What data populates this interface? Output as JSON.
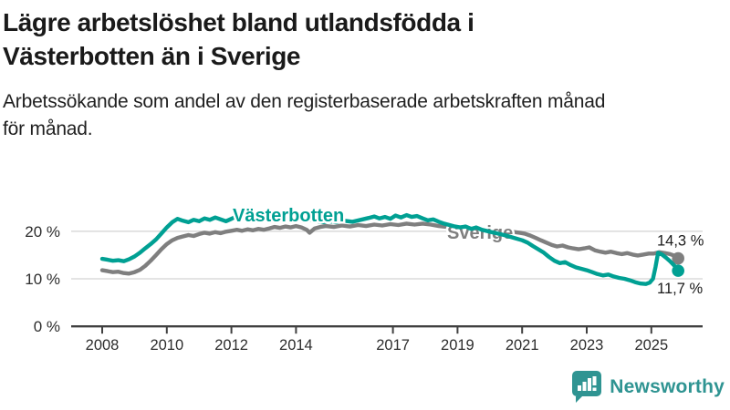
{
  "header": {
    "title_line1": "Lägre arbetslöshet bland utlandsfödda i",
    "title_line2": "Västerbotten än i Sverige",
    "subtitle_line1": "Arbetssökande som andel av den registerbaserade arbetskraften månad",
    "subtitle_line2": "för månad."
  },
  "footer": {
    "brand": "Newsworthy",
    "logo_icon": "bar-chart-speech-bubble-icon"
  },
  "colors": {
    "vasterbotten": "#00a093",
    "sverige": "#7f7f7f",
    "grid": "#dcdcdc",
    "axis": "#404040",
    "tick_label": "#2d2d2d",
    "value_label": "#1a1a1a",
    "brand": "#2f9492",
    "background": "#ffffff"
  },
  "chart_data": {
    "type": "line",
    "title": "Lägre arbetslöshet bland utlandsfödda i Västerbotten än i Sverige",
    "subtitle": "Arbetssökande som andel av den registerbaserade arbetskraften månad för månad.",
    "xlabel": "",
    "ylabel": "",
    "grid": true,
    "xlim": [
      2007.85,
      2026.5
    ],
    "ylim": [
      0,
      28
    ],
    "x_ticks": [
      2008,
      2010,
      2012,
      2014,
      2017,
      2019,
      2021,
      2023,
      2025
    ],
    "y_ticks": [
      "0 %",
      "10 %",
      "20 %"
    ],
    "y_tick_values": [
      0,
      10,
      20
    ],
    "legend_position": "inline-labels",
    "series": [
      {
        "name": "Sverige",
        "color": "#7f7f7f",
        "end_label": "14,3 %",
        "end_label_side": "above",
        "points": [
          [
            2008.0,
            11.8
          ],
          [
            2008.17,
            11.6
          ],
          [
            2008.33,
            11.4
          ],
          [
            2008.5,
            11.5
          ],
          [
            2008.67,
            11.2
          ],
          [
            2008.83,
            11.1
          ],
          [
            2009.0,
            11.4
          ],
          [
            2009.17,
            11.9
          ],
          [
            2009.33,
            12.7
          ],
          [
            2009.5,
            13.8
          ],
          [
            2009.67,
            15.0
          ],
          [
            2009.83,
            16.2
          ],
          [
            2010.0,
            17.3
          ],
          [
            2010.17,
            18.1
          ],
          [
            2010.33,
            18.6
          ],
          [
            2010.5,
            18.9
          ],
          [
            2010.67,
            19.2
          ],
          [
            2010.83,
            19.0
          ],
          [
            2011.0,
            19.4
          ],
          [
            2011.17,
            19.7
          ],
          [
            2011.33,
            19.5
          ],
          [
            2011.5,
            19.8
          ],
          [
            2011.67,
            19.6
          ],
          [
            2011.83,
            19.9
          ],
          [
            2012.0,
            20.1
          ],
          [
            2012.17,
            20.3
          ],
          [
            2012.33,
            20.1
          ],
          [
            2012.5,
            20.4
          ],
          [
            2012.67,
            20.2
          ],
          [
            2012.83,
            20.5
          ],
          [
            2013.0,
            20.3
          ],
          [
            2013.17,
            20.6
          ],
          [
            2013.33,
            20.9
          ],
          [
            2013.5,
            20.7
          ],
          [
            2013.67,
            21.0
          ],
          [
            2013.83,
            20.8
          ],
          [
            2014.0,
            21.1
          ],
          [
            2014.17,
            20.8
          ],
          [
            2014.33,
            20.3
          ],
          [
            2014.42,
            19.7
          ],
          [
            2014.58,
            20.6
          ],
          [
            2014.75,
            20.9
          ],
          [
            2014.92,
            21.1
          ],
          [
            2015.17,
            20.9
          ],
          [
            2015.42,
            21.2
          ],
          [
            2015.67,
            21.0
          ],
          [
            2015.92,
            21.3
          ],
          [
            2016.17,
            21.1
          ],
          [
            2016.42,
            21.4
          ],
          [
            2016.67,
            21.2
          ],
          [
            2016.92,
            21.5
          ],
          [
            2017.17,
            21.3
          ],
          [
            2017.42,
            21.6
          ],
          [
            2017.67,
            21.4
          ],
          [
            2017.92,
            21.6
          ],
          [
            2018.17,
            21.4
          ],
          [
            2018.42,
            21.1
          ],
          [
            2018.67,
            20.9
          ],
          [
            2018.92,
            20.7
          ],
          [
            2019.17,
            20.5
          ],
          [
            2019.42,
            20.3
          ],
          [
            2019.67,
            20.4
          ],
          [
            2019.92,
            20.2
          ],
          [
            2020.17,
            20.3
          ],
          [
            2020.42,
            20.1
          ],
          [
            2020.67,
            19.9
          ],
          [
            2020.92,
            19.7
          ],
          [
            2021.08,
            19.5
          ],
          [
            2021.25,
            19.1
          ],
          [
            2021.42,
            18.6
          ],
          [
            2021.58,
            18.1
          ],
          [
            2021.75,
            17.6
          ],
          [
            2021.92,
            17.1
          ],
          [
            2022.08,
            16.8
          ],
          [
            2022.25,
            17.0
          ],
          [
            2022.42,
            16.6
          ],
          [
            2022.58,
            16.4
          ],
          [
            2022.75,
            16.2
          ],
          [
            2022.92,
            16.4
          ],
          [
            2023.08,
            16.6
          ],
          [
            2023.25,
            16.0
          ],
          [
            2023.42,
            15.7
          ],
          [
            2023.58,
            15.5
          ],
          [
            2023.75,
            15.7
          ],
          [
            2023.92,
            15.4
          ],
          [
            2024.08,
            15.2
          ],
          [
            2024.25,
            15.4
          ],
          [
            2024.42,
            15.1
          ],
          [
            2024.58,
            14.9
          ],
          [
            2024.75,
            15.1
          ],
          [
            2024.92,
            15.3
          ],
          [
            2025.08,
            15.3
          ],
          [
            2025.25,
            15.6
          ],
          [
            2025.42,
            15.4
          ],
          [
            2025.58,
            15.2
          ],
          [
            2025.7,
            14.9
          ],
          [
            2025.83,
            14.3
          ]
        ]
      },
      {
        "name": "Västerbotten",
        "color": "#00a093",
        "end_label": "11,7 %",
        "end_label_side": "below",
        "points": [
          [
            2008.0,
            14.2
          ],
          [
            2008.17,
            14.0
          ],
          [
            2008.33,
            13.8
          ],
          [
            2008.5,
            13.9
          ],
          [
            2008.67,
            13.7
          ],
          [
            2008.83,
            14.1
          ],
          [
            2009.0,
            14.7
          ],
          [
            2009.17,
            15.5
          ],
          [
            2009.33,
            16.4
          ],
          [
            2009.5,
            17.3
          ],
          [
            2009.67,
            18.3
          ],
          [
            2009.83,
            19.5
          ],
          [
            2010.0,
            20.8
          ],
          [
            2010.17,
            21.9
          ],
          [
            2010.33,
            22.6
          ],
          [
            2010.5,
            22.2
          ],
          [
            2010.67,
            21.9
          ],
          [
            2010.83,
            22.4
          ],
          [
            2011.0,
            22.1
          ],
          [
            2011.17,
            22.7
          ],
          [
            2011.33,
            22.4
          ],
          [
            2011.5,
            22.9
          ],
          [
            2011.67,
            22.5
          ],
          [
            2011.83,
            22.1
          ],
          [
            2012.0,
            22.6
          ],
          [
            2012.17,
            23.2
          ],
          [
            2012.33,
            23.4
          ],
          [
            2012.5,
            22.9
          ],
          [
            2012.67,
            23.2
          ],
          [
            2012.83,
            22.7
          ],
          [
            2013.0,
            22.4
          ],
          [
            2013.17,
            22.8
          ],
          [
            2013.33,
            23.1
          ],
          [
            2013.5,
            22.6
          ],
          [
            2013.67,
            22.3
          ],
          [
            2013.83,
            22.7
          ],
          [
            2014.0,
            23.0
          ],
          [
            2014.17,
            22.6
          ],
          [
            2014.33,
            22.2
          ],
          [
            2014.5,
            22.5
          ],
          [
            2014.67,
            22.1
          ],
          [
            2014.83,
            21.9
          ],
          [
            2015.0,
            22.1
          ],
          [
            2015.25,
            21.9
          ],
          [
            2015.5,
            22.2
          ],
          [
            2015.75,
            22.0
          ],
          [
            2016.0,
            22.4
          ],
          [
            2016.25,
            22.8
          ],
          [
            2016.42,
            23.1
          ],
          [
            2016.58,
            22.7
          ],
          [
            2016.75,
            23.0
          ],
          [
            2016.92,
            22.6
          ],
          [
            2017.08,
            23.3
          ],
          [
            2017.25,
            22.9
          ],
          [
            2017.42,
            23.4
          ],
          [
            2017.58,
            23.0
          ],
          [
            2017.75,
            23.2
          ],
          [
            2017.92,
            22.7
          ],
          [
            2018.08,
            22.3
          ],
          [
            2018.25,
            22.5
          ],
          [
            2018.42,
            22.0
          ],
          [
            2018.58,
            21.6
          ],
          [
            2018.75,
            21.3
          ],
          [
            2018.92,
            21.0
          ],
          [
            2019.08,
            20.8
          ],
          [
            2019.25,
            21.0
          ],
          [
            2019.42,
            20.5
          ],
          [
            2019.58,
            20.8
          ],
          [
            2019.75,
            20.3
          ],
          [
            2020.0,
            19.9
          ],
          [
            2020.25,
            19.5
          ],
          [
            2020.5,
            19.1
          ],
          [
            2020.75,
            18.6
          ],
          [
            2021.0,
            18.1
          ],
          [
            2021.17,
            17.6
          ],
          [
            2021.33,
            16.9
          ],
          [
            2021.5,
            16.2
          ],
          [
            2021.67,
            15.5
          ],
          [
            2021.83,
            14.6
          ],
          [
            2022.0,
            13.8
          ],
          [
            2022.17,
            13.3
          ],
          [
            2022.33,
            13.5
          ],
          [
            2022.5,
            12.9
          ],
          [
            2022.67,
            12.4
          ],
          [
            2022.83,
            12.1
          ],
          [
            2023.0,
            11.8
          ],
          [
            2023.17,
            11.4
          ],
          [
            2023.33,
            11.0
          ],
          [
            2023.5,
            10.7
          ],
          [
            2023.67,
            10.9
          ],
          [
            2023.83,
            10.5
          ],
          [
            2024.0,
            10.2
          ],
          [
            2024.17,
            10.0
          ],
          [
            2024.33,
            9.7
          ],
          [
            2024.5,
            9.3
          ],
          [
            2024.67,
            9.0
          ],
          [
            2024.83,
            8.9
          ],
          [
            2024.95,
            9.2
          ],
          [
            2025.05,
            10.0
          ],
          [
            2025.13,
            12.5
          ],
          [
            2025.21,
            15.5
          ],
          [
            2025.33,
            15.1
          ],
          [
            2025.46,
            14.4
          ],
          [
            2025.58,
            13.7
          ],
          [
            2025.71,
            12.8
          ],
          [
            2025.83,
            11.7
          ]
        ]
      }
    ]
  }
}
